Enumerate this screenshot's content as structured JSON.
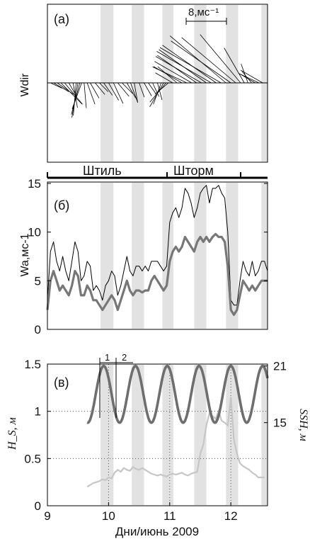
{
  "chart_data": [
    {
      "type": "line",
      "panel_label": "(а)",
      "ylabel": "Wdir",
      "scale_bar_label": "8,мс⁻¹",
      "x_range": [
        9,
        12.6
      ],
      "sticks": [
        [
          9.05,
          2.5,
          115
        ],
        [
          9.1,
          3.5,
          120
        ],
        [
          9.16,
          4.0,
          125
        ],
        [
          9.22,
          6.0,
          135
        ],
        [
          9.28,
          5.5,
          140
        ],
        [
          9.35,
          3.0,
          150
        ],
        [
          9.42,
          5.0,
          170
        ],
        [
          9.47,
          6.5,
          185
        ],
        [
          9.5,
          7.0,
          190
        ],
        [
          9.53,
          6.5,
          195
        ],
        [
          9.56,
          5.5,
          200
        ],
        [
          9.6,
          5.0,
          175
        ],
        [
          9.65,
          4.5,
          160
        ],
        [
          9.7,
          3.5,
          150
        ],
        [
          9.78,
          3.0,
          140
        ],
        [
          9.85,
          2.5,
          135
        ],
        [
          9.92,
          3.0,
          145
        ],
        [
          10.0,
          4.0,
          150
        ],
        [
          10.08,
          4.5,
          155
        ],
        [
          10.15,
          3.5,
          140
        ],
        [
          10.22,
          3.0,
          135
        ],
        [
          10.3,
          3.5,
          150
        ],
        [
          10.36,
          4.0,
          160
        ],
        [
          10.42,
          4.0,
          170
        ],
        [
          10.5,
          3.0,
          160
        ],
        [
          10.58,
          3.0,
          150
        ],
        [
          10.65,
          2.5,
          145
        ],
        [
          10.72,
          3.0,
          155
        ],
        [
          10.8,
          3.5,
          165
        ],
        [
          10.86,
          4.5,
          200
        ],
        [
          10.9,
          5.5,
          210
        ],
        [
          10.94,
          5.0,
          220
        ],
        [
          10.98,
          3.5,
          230
        ],
        [
          11.05,
          4.0,
          300
        ],
        [
          11.12,
          5.0,
          310
        ],
        [
          11.2,
          6.5,
          300
        ],
        [
          11.28,
          7.5,
          295
        ],
        [
          11.36,
          8.5,
          300
        ],
        [
          11.44,
          9.5,
          305
        ],
        [
          11.52,
          10.5,
          300
        ],
        [
          11.6,
          11.5,
          305
        ],
        [
          11.68,
          12.5,
          300
        ],
        [
          11.76,
          13.0,
          305
        ],
        [
          11.84,
          14.0,
          300
        ],
        [
          11.92,
          14.5,
          310
        ],
        [
          12.0,
          14.5,
          305
        ],
        [
          12.08,
          14.0,
          310
        ],
        [
          12.16,
          12.5,
          320
        ],
        [
          12.22,
          8.0,
          330
        ],
        [
          12.28,
          4.0,
          340
        ],
        [
          12.34,
          3.0,
          320
        ],
        [
          12.4,
          3.5,
          300
        ],
        [
          12.46,
          4.5,
          295
        ],
        [
          12.52,
          5.0,
          300
        ]
      ]
    },
    {
      "type": "line",
      "panel_label": "(б)",
      "ylabel": "Wa,мс-1",
      "ylim": [
        0,
        15
      ],
      "yticks": [
        "0",
        "5",
        "10",
        "15"
      ],
      "phase_labels": [
        "Штиль",
        "Шторм"
      ],
      "series": [
        {
          "style": "thin-black",
          "x": [
            9.0,
            9.05,
            9.1,
            9.15,
            9.2,
            9.25,
            9.3,
            9.35,
            9.4,
            9.45,
            9.5,
            9.55,
            9.6,
            9.65,
            9.7,
            9.75,
            9.8,
            9.85,
            9.9,
            9.95,
            10.0,
            10.05,
            10.1,
            10.15,
            10.2,
            10.25,
            10.3,
            10.35,
            10.4,
            10.45,
            10.5,
            10.55,
            10.6,
            10.65,
            10.7,
            10.75,
            10.8,
            10.85,
            10.9,
            10.95,
            11.0,
            11.05,
            11.1,
            11.15,
            11.2,
            11.25,
            11.3,
            11.35,
            11.4,
            11.45,
            11.5,
            11.55,
            11.6,
            11.65,
            11.7,
            11.75,
            11.8,
            11.85,
            11.9,
            11.95,
            12.0,
            12.05,
            12.1,
            12.15,
            12.2,
            12.25,
            12.3,
            12.35,
            12.4,
            12.45,
            12.5,
            12.55,
            12.6
          ],
          "y": [
            3.0,
            8.0,
            9.0,
            7.0,
            6.0,
            7.5,
            6.0,
            5.0,
            7.0,
            9.0,
            8.0,
            5.0,
            5.5,
            7.0,
            6.5,
            4.0,
            4.5,
            4.0,
            3.0,
            4.5,
            5.0,
            6.0,
            5.5,
            3.5,
            4.5,
            6.0,
            7.5,
            6.0,
            5.5,
            6.5,
            6.5,
            6.0,
            6.5,
            6.0,
            7.0,
            7.0,
            7.0,
            6.5,
            6.0,
            6.5,
            11.0,
            12.0,
            12.5,
            11.5,
            12.5,
            14.5,
            14.0,
            13.0,
            11.5,
            12.5,
            14.0,
            14.5,
            14.8,
            13.0,
            14.5,
            14.5,
            14.8,
            14.0,
            13.5,
            10.0,
            3.0,
            2.5,
            2.5,
            5.0,
            7.0,
            6.0,
            5.5,
            7.0,
            5.5,
            6.0,
            7.0,
            7.0,
            6.0
          ]
        },
        {
          "style": "thick-grey",
          "x": [
            9.0,
            9.05,
            9.1,
            9.15,
            9.2,
            9.25,
            9.3,
            9.35,
            9.4,
            9.45,
            9.5,
            9.55,
            9.6,
            9.65,
            9.7,
            9.75,
            9.8,
            9.85,
            9.9,
            9.95,
            10.0,
            10.05,
            10.1,
            10.15,
            10.2,
            10.25,
            10.3,
            10.35,
            10.4,
            10.45,
            10.5,
            10.55,
            10.6,
            10.65,
            10.7,
            10.75,
            10.8,
            10.85,
            10.9,
            10.95,
            11.0,
            11.05,
            11.1,
            11.15,
            11.2,
            11.25,
            11.3,
            11.35,
            11.4,
            11.45,
            11.5,
            11.55,
            11.6,
            11.65,
            11.7,
            11.75,
            11.8,
            11.85,
            11.9,
            11.95,
            12.0,
            12.05,
            12.1,
            12.15,
            12.2,
            12.25,
            12.3,
            12.35,
            12.4,
            12.45,
            12.5,
            12.55,
            12.6
          ],
          "y": [
            2.0,
            5.0,
            6.0,
            5.0,
            4.0,
            4.5,
            4.0,
            3.5,
            4.5,
            6.0,
            5.5,
            3.5,
            3.5,
            4.5,
            4.0,
            3.0,
            3.0,
            2.5,
            2.0,
            2.5,
            3.0,
            3.5,
            3.0,
            2.0,
            3.0,
            4.0,
            5.0,
            4.0,
            3.5,
            4.0,
            4.0,
            3.8,
            4.0,
            4.0,
            5.0,
            5.5,
            5.0,
            4.5,
            4.0,
            4.5,
            7.0,
            8.0,
            8.5,
            8.0,
            8.5,
            9.5,
            9.0,
            8.5,
            8.0,
            9.0,
            9.5,
            9.0,
            9.5,
            9.0,
            9.5,
            9.8,
            9.5,
            9.5,
            9.0,
            6.5,
            2.0,
            1.5,
            2.0,
            3.5,
            5.0,
            4.5,
            4.0,
            4.5,
            4.0,
            4.5,
            5.0,
            5.0,
            5.0
          ]
        }
      ]
    },
    {
      "type": "line",
      "panel_label": "(в)",
      "ylabel": "H_S, м",
      "ylabel_right": "SSH, м",
      "xlabel": "Дни/июнь 2009",
      "ylim": [
        0,
        1.5
      ],
      "yticks": [
        "0",
        "0.5",
        "1",
        "1.5"
      ],
      "right_yticks": [
        "15",
        "21"
      ],
      "xticks": [
        "9",
        "10",
        "11",
        "12"
      ],
      "cycle_labels": [
        "1",
        "2"
      ],
      "series": [
        {
          "style": "light-grey",
          "x": [
            9.65,
            9.7,
            9.75,
            9.8,
            9.85,
            9.9,
            9.95,
            10.0,
            10.05,
            10.1,
            10.15,
            10.2,
            10.25,
            10.3,
            10.35,
            10.4,
            10.45,
            10.5,
            10.55,
            10.6,
            10.65,
            10.7,
            10.75,
            10.8,
            10.85,
            10.9,
            10.95,
            11.0,
            11.05,
            11.1,
            11.15,
            11.2,
            11.25,
            11.3,
            11.35,
            11.4,
            11.45,
            11.5,
            11.55,
            11.6,
            11.65,
            11.7,
            11.75,
            11.8,
            11.85,
            11.9,
            11.95,
            12.0,
            12.05,
            12.1,
            12.15,
            12.2,
            12.25,
            12.3,
            12.35,
            12.4,
            12.45,
            12.5,
            12.55
          ],
          "y": [
            0.2,
            0.22,
            0.24,
            0.25,
            0.26,
            0.28,
            0.27,
            0.3,
            0.29,
            0.35,
            0.38,
            0.36,
            0.4,
            0.38,
            0.37,
            0.41,
            0.39,
            0.38,
            0.4,
            0.38,
            0.36,
            0.34,
            0.33,
            0.32,
            0.33,
            0.32,
            0.31,
            0.33,
            0.34,
            0.33,
            0.34,
            0.35,
            0.33,
            0.32,
            0.34,
            0.35,
            0.36,
            0.55,
            0.65,
            0.85,
            0.98,
            0.95,
            0.92,
            1.0,
            0.9,
            0.88,
            0.85,
            1.15,
            0.7,
            0.55,
            0.45,
            0.42,
            0.4,
            0.38,
            0.35,
            0.33,
            0.3,
            0.3,
            0.3
          ]
        },
        {
          "style": "thick-dark-grey",
          "role": "SSH (right axis)",
          "x_start": 9.65,
          "x_end": 12.6,
          "min_hs_units": 0.88,
          "max_hs_units": 1.48,
          "period_days": 0.52,
          "first_peak_x": 9.92
        }
      ]
    }
  ]
}
